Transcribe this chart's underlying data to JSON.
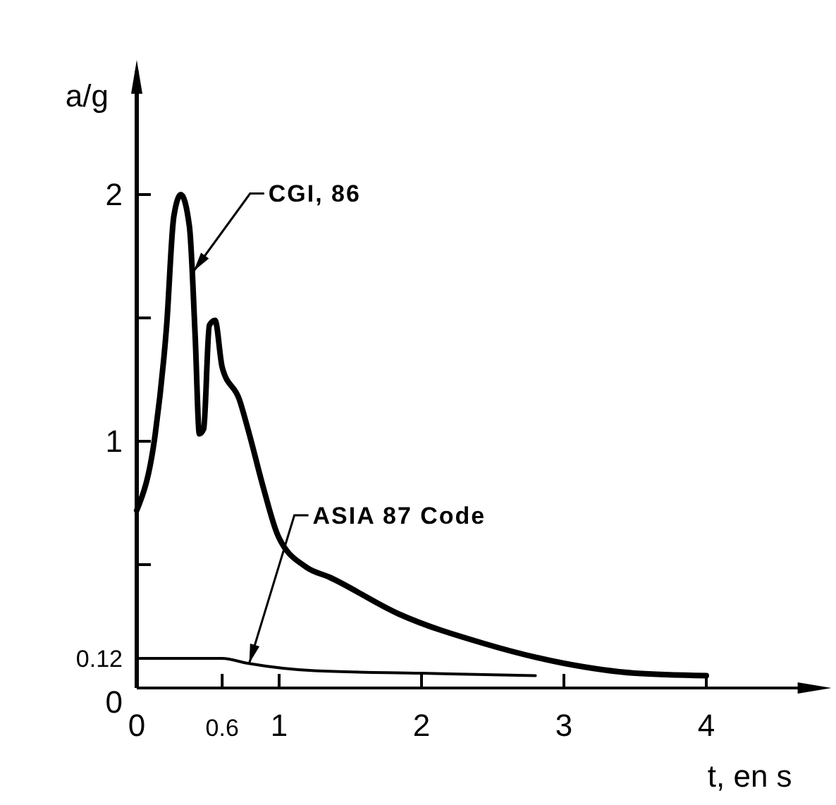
{
  "chart_data": {
    "type": "line",
    "xlabel": "t, en s",
    "ylabel": "a/g",
    "xlim": [
      0,
      4.8
    ],
    "ylim": [
      0,
      2.5
    ],
    "xticks": [
      0,
      0.6,
      1,
      2,
      3,
      4
    ],
    "yticks": [
      0,
      0.12,
      {
        "value": 0.5,
        "label": null
      },
      1,
      {
        "value": 1.5,
        "label": null
      },
      2
    ],
    "series": [
      {
        "color": "#000000",
        "x": [
          0,
          0.13,
          0.21,
          0.26,
          0.31,
          0.37,
          0.41,
          0.44,
          0.47,
          0.51,
          0.55,
          0.6,
          0.72,
          0.79,
          0.89,
          0.99,
          1.19,
          1.35,
          1.84,
          2.44,
          3.0,
          3.5,
          4.0
        ],
        "values": [
          0.72,
          1.03,
          1.47,
          1.91,
          2.0,
          1.87,
          1.43,
          1.03,
          1.05,
          1.47,
          1.49,
          1.3,
          1.17,
          1.03,
          0.81,
          0.62,
          0.49,
          0.45,
          0.3,
          0.18,
          0.1,
          0.06,
          0.05
        ]
      },
      {
        "color": "#000000",
        "x": [
          0,
          0.6,
          0.78,
          1.25,
          2.0,
          2.8
        ],
        "values": [
          0.12,
          0.12,
          0.1,
          0.07,
          0.06,
          0.05
        ]
      }
    ],
    "annotations": [
      {
        "text": "CGI, 86",
        "x": 0.4,
        "y": 1.69
      },
      {
        "text": "ASIA 87 Code",
        "x": 0.79,
        "y": 0.1
      }
    ]
  }
}
